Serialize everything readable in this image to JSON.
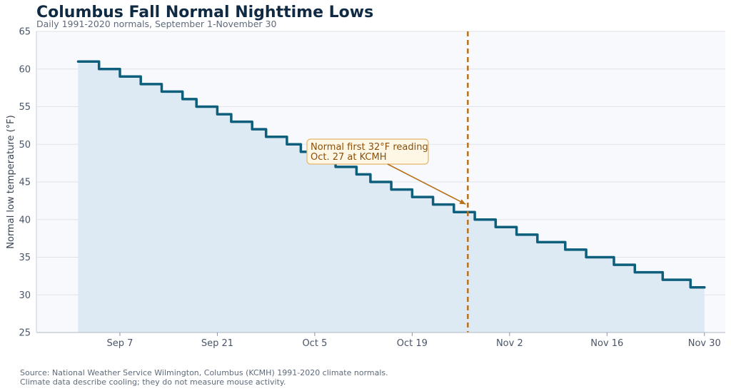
{
  "chart_data": {
    "type": "line",
    "title": "Columbus Fall Normal Nighttime Lows",
    "subtitle": "Daily 1991-2020 normals, September 1-November 30",
    "xlabel": "",
    "ylabel": "Normal low temperature (°F)",
    "ylim": [
      25,
      65
    ],
    "yticks": [
      25,
      30,
      35,
      40,
      45,
      50,
      55,
      60,
      65
    ],
    "xlim": [
      "Aug 26",
      "Dec 3"
    ],
    "xticks": [
      {
        "date": "Sep 7",
        "label": "Sep 7"
      },
      {
        "date": "Sep 21",
        "label": "Sep 21"
      },
      {
        "date": "Oct 5",
        "label": "Oct 5"
      },
      {
        "date": "Oct 19",
        "label": "Oct 19"
      },
      {
        "date": "Nov 2",
        "label": "Nov 2"
      },
      {
        "date": "Nov 16",
        "label": "Nov 16"
      },
      {
        "date": "Nov 30",
        "label": "Nov 30"
      }
    ],
    "grid": true,
    "line_color": "#0e5f7c",
    "fill_color": "#dde9f3",
    "marker_color": "#b8701a",
    "series": [
      {
        "values": [
          {
            "start": "Sep 1",
            "end": "Sep 4",
            "value": 61
          },
          {
            "start": "Sep 4",
            "end": "Sep 7",
            "value": 60
          },
          {
            "start": "Sep 7",
            "end": "Sep 10",
            "value": 59
          },
          {
            "start": "Sep 10",
            "end": "Sep 13",
            "value": 58
          },
          {
            "start": "Sep 13",
            "end": "Sep 16",
            "value": 57
          },
          {
            "start": "Sep 16",
            "end": "Sep 18",
            "value": 56
          },
          {
            "start": "Sep 18",
            "end": "Sep 21",
            "value": 55
          },
          {
            "start": "Sep 21",
            "end": "Sep 23",
            "value": 54
          },
          {
            "start": "Sep 23",
            "end": "Sep 26",
            "value": 53
          },
          {
            "start": "Sep 26",
            "end": "Sep 28",
            "value": 52
          },
          {
            "start": "Sep 28",
            "end": "Oct 1",
            "value": 51
          },
          {
            "start": "Oct 1",
            "end": "Oct 3",
            "value": 50
          },
          {
            "start": "Oct 3",
            "end": "Oct 6",
            "value": 49
          },
          {
            "start": "Oct 6",
            "end": "Oct 8",
            "value": 48
          },
          {
            "start": "Oct 8",
            "end": "Oct 11",
            "value": 47
          },
          {
            "start": "Oct 11",
            "end": "Oct 13",
            "value": 46
          },
          {
            "start": "Oct 13",
            "end": "Oct 16",
            "value": 45
          },
          {
            "start": "Oct 16",
            "end": "Oct 19",
            "value": 44
          },
          {
            "start": "Oct 19",
            "end": "Oct 22",
            "value": 43
          },
          {
            "start": "Oct 22",
            "end": "Oct 25",
            "value": 42
          },
          {
            "start": "Oct 25",
            "end": "Oct 28",
            "value": 41
          },
          {
            "start": "Oct 28",
            "end": "Oct 31",
            "value": 40
          },
          {
            "start": "Oct 31",
            "end": "Nov 3",
            "value": 39
          },
          {
            "start": "Nov 3",
            "end": "Nov 6",
            "value": 38
          },
          {
            "start": "Nov 6",
            "end": "Nov 10",
            "value": 37
          },
          {
            "start": "Nov 10",
            "end": "Nov 13",
            "value": 36
          },
          {
            "start": "Nov 13",
            "end": "Nov 17",
            "value": 35
          },
          {
            "start": "Nov 17",
            "end": "Nov 20",
            "value": 34
          },
          {
            "start": "Nov 20",
            "end": "Nov 24",
            "value": 33
          },
          {
            "start": "Nov 24",
            "end": "Nov 28",
            "value": 32
          },
          {
            "start": "Nov 28",
            "end": "Nov 30",
            "value": 31
          }
        ]
      }
    ],
    "vline": {
      "date": "Oct 27",
      "style": "dashed"
    },
    "annotation": {
      "lines": [
        "Normal first 32°F reading",
        "Oct. 27 at KCMH"
      ],
      "arrow_to": {
        "date": "Oct 27",
        "value": 41
      }
    }
  },
  "footer": {
    "line1": "Source: National Weather Service Wilmington, Columbus (KCMH) 1991-2020 climate normals.",
    "line2": "Climate data describe cooling; they do not measure mouse activity."
  }
}
